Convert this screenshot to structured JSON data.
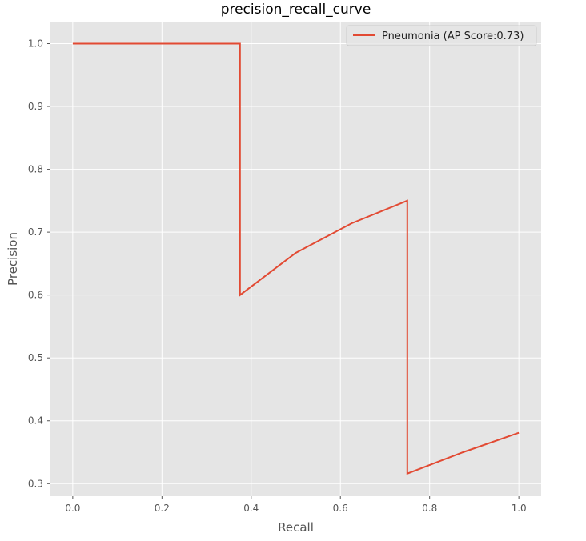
{
  "chart_data": {
    "type": "line",
    "title": "precision_recall_curve",
    "xlabel": "Recall",
    "ylabel": "Precision",
    "xlim": [
      -0.05,
      1.05
    ],
    "ylim": [
      0.28,
      1.035
    ],
    "xticks": [
      0.0,
      0.2,
      0.4,
      0.6,
      0.8,
      1.0
    ],
    "xtick_labels": [
      "0.0",
      "0.2",
      "0.4",
      "0.6",
      "0.8",
      "1.0"
    ],
    "yticks": [
      0.3,
      0.4,
      0.5,
      0.6,
      0.7,
      0.8,
      0.9,
      1.0
    ],
    "ytick_labels": [
      "0.3",
      "0.4",
      "0.5",
      "0.6",
      "0.7",
      "0.8",
      "0.9",
      "1.0"
    ],
    "grid": true,
    "legend_position": "top-right",
    "series": [
      {
        "name": "Pneumonia (AP Score:0.73)",
        "color": "#e24a33",
        "x": [
          0.0,
          0.375,
          0.375,
          0.5,
          0.625,
          0.75,
          0.75,
          0.875,
          1.0
        ],
        "y": [
          1.0,
          1.0,
          0.6,
          0.667,
          0.714,
          0.75,
          0.316,
          0.35,
          0.381
        ]
      }
    ]
  },
  "style": {
    "plot_background": "#e5e5e5",
    "grid_color": "#ffffff",
    "tick_color": "#555555"
  }
}
